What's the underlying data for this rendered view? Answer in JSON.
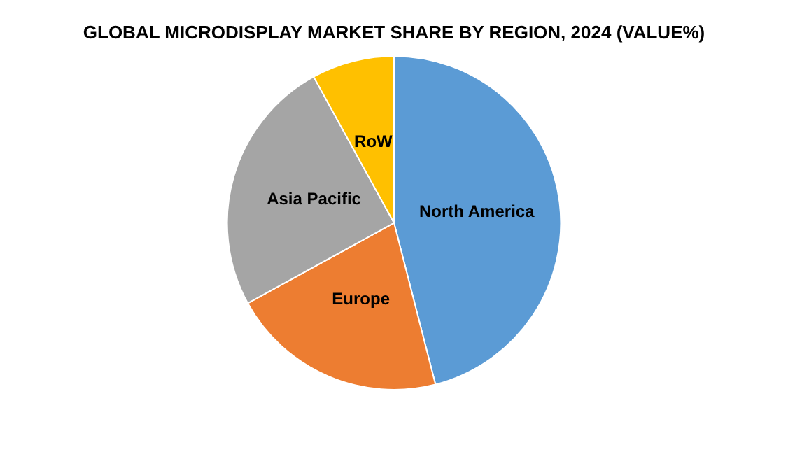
{
  "chart_data": {
    "type": "pie",
    "title": "GLOBAL MICRODISPLAY MARKET SHARE BY REGION, 2024 (VALUE%)",
    "categories": [
      "North America",
      "Europe",
      "Asia Pacific",
      "RoW"
    ],
    "values": [
      46,
      21,
      25,
      8
    ],
    "colors": [
      "#5b9bd5",
      "#ed7d31",
      "#a5a5a5",
      "#ffc000"
    ],
    "legend": false
  }
}
